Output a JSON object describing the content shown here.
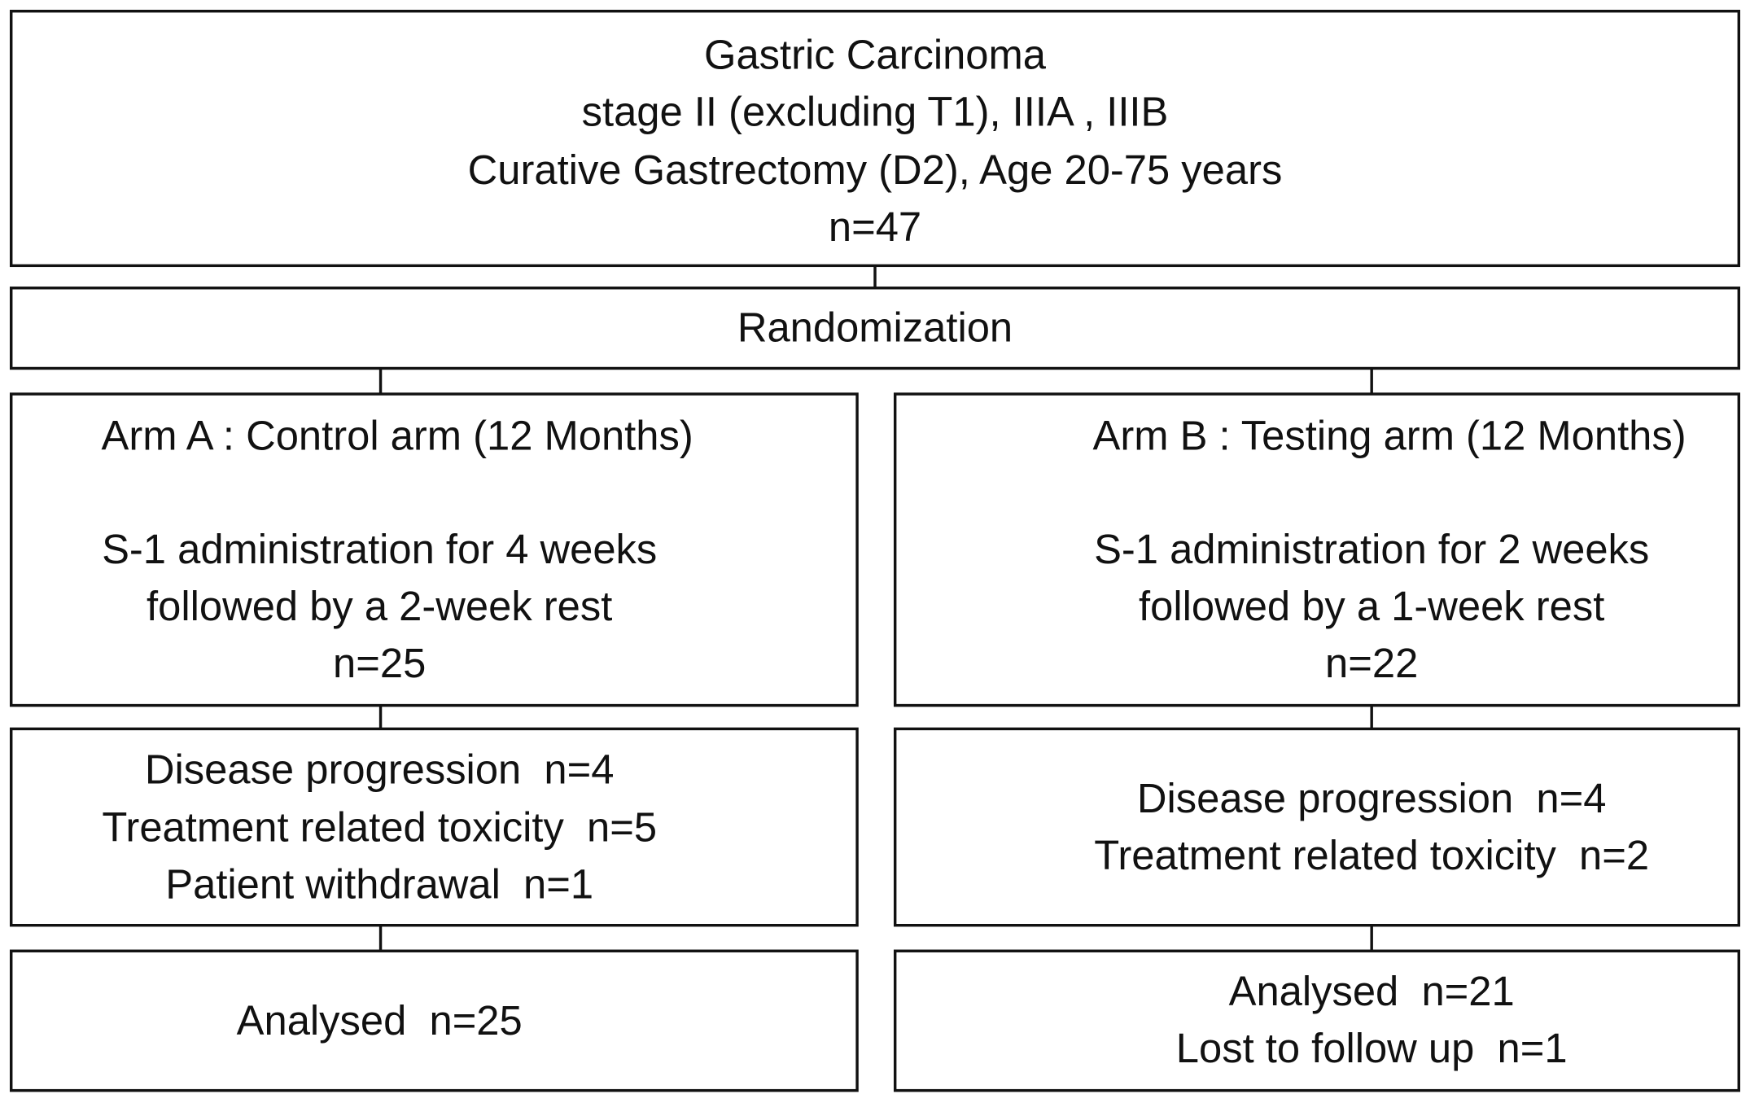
{
  "boxes": [
    {
      "lines": [
        "Gastric Carcinoma",
        "stage II (excluding T1), IIIA , IIIB",
        "Curative Gastrectomy (D2), Age 20-75 years",
        "n=47"
      ]
    },
    {
      "lines": [
        "Randomization"
      ]
    },
    {
      "lines": [
        "Arm A : Control arm (12 Months)",
        "S-1 administration for 4 weeks",
        "followed by a 2-week rest",
        "n=25"
      ]
    },
    {
      "lines": [
        "Arm B : Testing arm (12 Months)",
        "S-1 administration for 2 weeks",
        "followed by a 1-week rest",
        "n=22"
      ]
    },
    {
      "lines": [
        "Disease progression  n=4",
        "Treatment related toxicity  n=5",
        "Patient withdrawal  n=1"
      ]
    },
    {
      "lines": [
        "Disease progression  n=4",
        "Treatment related toxicity  n=2"
      ]
    },
    {
      "lines": [
        "Analysed  n=25"
      ]
    },
    {
      "lines": [
        "Analysed  n=21",
        "Lost to follow up  n=1"
      ]
    }
  ]
}
